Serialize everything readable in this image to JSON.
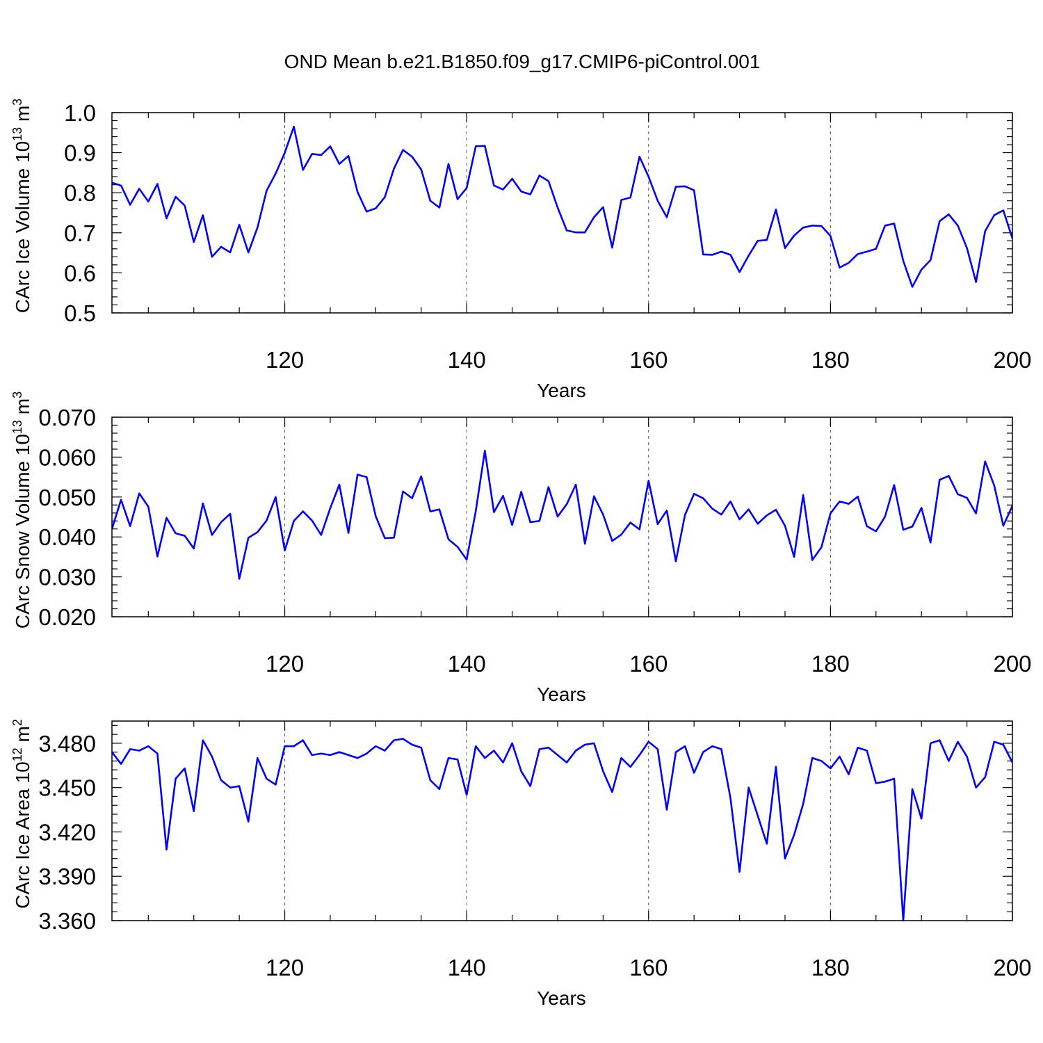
{
  "title": "OND Mean b.e21.B1850.f09_g17.CMIP6-piControl.001",
  "colors": {
    "series": "#0000ff",
    "axis": "#000000",
    "grid": "#555555"
  },
  "chart_data": [
    {
      "type": "line",
      "xlabel": "Years",
      "ylabel": "CArc Ice Volume 10",
      "ylabel_exp": "13",
      "ylabel_unit": " m",
      "ylabel_unit_exp": "3",
      "xlim": [
        101,
        200
      ],
      "ylim": [
        0.5,
        1.0
      ],
      "xticks": [
        120,
        140,
        160,
        180,
        200
      ],
      "xtick_labels": [
        "120",
        "140",
        "160",
        "180",
        "200"
      ],
      "yticks": [
        0.5,
        0.6,
        0.7,
        0.8,
        0.9,
        1.0
      ],
      "ytick_labels": [
        "0.5",
        "0.6",
        "0.7",
        "0.8",
        "0.9",
        "1.0"
      ],
      "grid_x": [
        120,
        140,
        160,
        180
      ],
      "x_start": 101,
      "series": [
        {
          "name": "CArc Ice Volume",
          "values": [
            0.825,
            0.818,
            0.77,
            0.81,
            0.778,
            0.822,
            0.736,
            0.79,
            0.768,
            0.677,
            0.744,
            0.64,
            0.665,
            0.651,
            0.72,
            0.651,
            0.713,
            0.805,
            0.848,
            0.9,
            0.965,
            0.857,
            0.897,
            0.894,
            0.916,
            0.872,
            0.892,
            0.802,
            0.753,
            0.761,
            0.789,
            0.86,
            0.907,
            0.89,
            0.858,
            0.78,
            0.763,
            0.872,
            0.784,
            0.812,
            0.916,
            0.917,
            0.818,
            0.808,
            0.835,
            0.803,
            0.796,
            0.843,
            0.829,
            0.763,
            0.706,
            0.701,
            0.701,
            0.739,
            0.764,
            0.663,
            0.782,
            0.788,
            0.89,
            0.84,
            0.78,
            0.739,
            0.815,
            0.816,
            0.806,
            0.646,
            0.645,
            0.653,
            0.645,
            0.602,
            0.643,
            0.68,
            0.682,
            0.758,
            0.662,
            0.693,
            0.713,
            0.718,
            0.717,
            0.692,
            0.613,
            0.625,
            0.647,
            0.653,
            0.66,
            0.718,
            0.723,
            0.63,
            0.565,
            0.608,
            0.632,
            0.729,
            0.746,
            0.718,
            0.662,
            0.577,
            0.704,
            0.744,
            0.756,
            0.686
          ]
        }
      ]
    },
    {
      "type": "line",
      "xlabel": "Years",
      "ylabel": "CArc Snow Volume 10",
      "ylabel_exp": "13",
      "ylabel_unit": " m",
      "ylabel_unit_exp": "3",
      "xlim": [
        101,
        200
      ],
      "ylim": [
        0.02,
        0.07
      ],
      "xticks": [
        120,
        140,
        160,
        180,
        200
      ],
      "xtick_labels": [
        "120",
        "140",
        "160",
        "180",
        "200"
      ],
      "yticks": [
        0.02,
        0.03,
        0.04,
        0.05,
        0.06,
        0.07
      ],
      "ytick_labels": [
        "0.020",
        "0.030",
        "0.040",
        "0.050",
        "0.060",
        "0.070"
      ],
      "grid_x": [
        120,
        140,
        160,
        180
      ],
      "x_start": 101,
      "series": [
        {
          "name": "CArc Snow Volume",
          "values": [
            0.042,
            0.0493,
            0.0427,
            0.0509,
            0.0476,
            0.0351,
            0.0448,
            0.0409,
            0.0403,
            0.0371,
            0.0484,
            0.0405,
            0.0437,
            0.0458,
            0.0295,
            0.0398,
            0.0412,
            0.0441,
            0.05,
            0.0366,
            0.044,
            0.0464,
            0.0441,
            0.0405,
            0.0472,
            0.0531,
            0.041,
            0.0556,
            0.055,
            0.0452,
            0.0397,
            0.0398,
            0.0514,
            0.0497,
            0.0552,
            0.0464,
            0.0469,
            0.0394,
            0.0375,
            0.0343,
            0.0465,
            0.0616,
            0.0462,
            0.0503,
            0.043,
            0.0513,
            0.0437,
            0.044,
            0.0525,
            0.0451,
            0.0482,
            0.0531,
            0.0383,
            0.0502,
            0.0456,
            0.039,
            0.0406,
            0.0436,
            0.0419,
            0.0541,
            0.0432,
            0.0466,
            0.0339,
            0.0455,
            0.0508,
            0.0497,
            0.0471,
            0.0456,
            0.0489,
            0.0444,
            0.0469,
            0.0433,
            0.0454,
            0.0468,
            0.0428,
            0.035,
            0.0505,
            0.0342,
            0.0374,
            0.0459,
            0.0489,
            0.0483,
            0.0501,
            0.0427,
            0.0414,
            0.0451,
            0.053,
            0.0418,
            0.0426,
            0.0473,
            0.0386,
            0.0543,
            0.0553,
            0.0507,
            0.0498,
            0.0459,
            0.0589,
            0.0529,
            0.0428,
            0.0478
          ]
        }
      ]
    },
    {
      "type": "line",
      "xlabel": "Years",
      "ylabel": "CArc Ice Area 10",
      "ylabel_exp": "12",
      "ylabel_unit": " m",
      "ylabel_unit_exp": "2",
      "xlim": [
        101,
        200
      ],
      "ylim": [
        3.36,
        3.495
      ],
      "xticks": [
        120,
        140,
        160,
        180,
        200
      ],
      "xtick_labels": [
        "120",
        "140",
        "160",
        "180",
        "200"
      ],
      "yticks": [
        3.36,
        3.39,
        3.42,
        3.45,
        3.48
      ],
      "ytick_labels": [
        "3.360",
        "3.390",
        "3.420",
        "3.450",
        "3.480"
      ],
      "grid_x": [
        120,
        140,
        160,
        180
      ],
      "x_start": 101,
      "series": [
        {
          "name": "CArc Ice Area",
          "values": [
            3.474,
            3.466,
            3.476,
            3.475,
            3.478,
            3.473,
            3.408,
            3.456,
            3.463,
            3.434,
            3.482,
            3.471,
            3.455,
            3.45,
            3.451,
            3.427,
            3.47,
            3.456,
            3.452,
            3.478,
            3.478,
            3.482,
            3.472,
            3.473,
            3.472,
            3.474,
            3.472,
            3.47,
            3.473,
            3.478,
            3.475,
            3.482,
            3.483,
            3.479,
            3.477,
            3.455,
            3.449,
            3.47,
            3.469,
            3.445,
            3.478,
            3.47,
            3.475,
            3.467,
            3.48,
            3.461,
            3.451,
            3.476,
            3.477,
            3.472,
            3.467,
            3.475,
            3.479,
            3.48,
            3.461,
            3.447,
            3.47,
            3.464,
            3.472,
            3.481,
            3.476,
            3.435,
            3.474,
            3.478,
            3.46,
            3.474,
            3.478,
            3.476,
            3.443,
            3.393,
            3.45,
            3.431,
            3.412,
            3.464,
            3.402,
            3.418,
            3.439,
            3.47,
            3.468,
            3.463,
            3.471,
            3.459,
            3.477,
            3.475,
            3.453,
            3.454,
            3.456,
            3.36,
            3.449,
            3.429,
            3.48,
            3.482,
            3.468,
            3.481,
            3.471,
            3.45,
            3.457,
            3.481,
            3.479,
            3.467
          ]
        }
      ]
    }
  ]
}
